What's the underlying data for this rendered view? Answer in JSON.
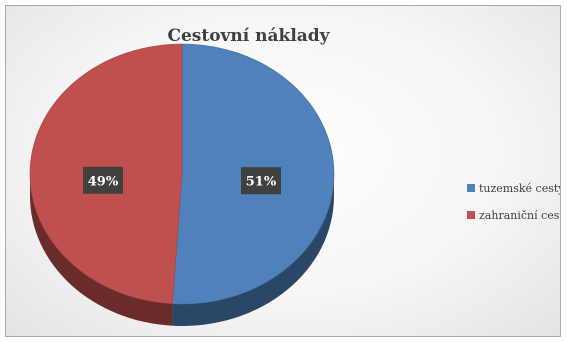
{
  "chart_data": {
    "type": "pie",
    "title": "Cestovní náklady",
    "categories": [
      "tuzemské cesty",
      "zahraniční cesty"
    ],
    "values": [
      51,
      49
    ],
    "data_labels": [
      "51%",
      "49%"
    ],
    "colors": [
      "#4f81bd",
      "#c0504d"
    ],
    "legend_position": "right",
    "style": "3d"
  }
}
